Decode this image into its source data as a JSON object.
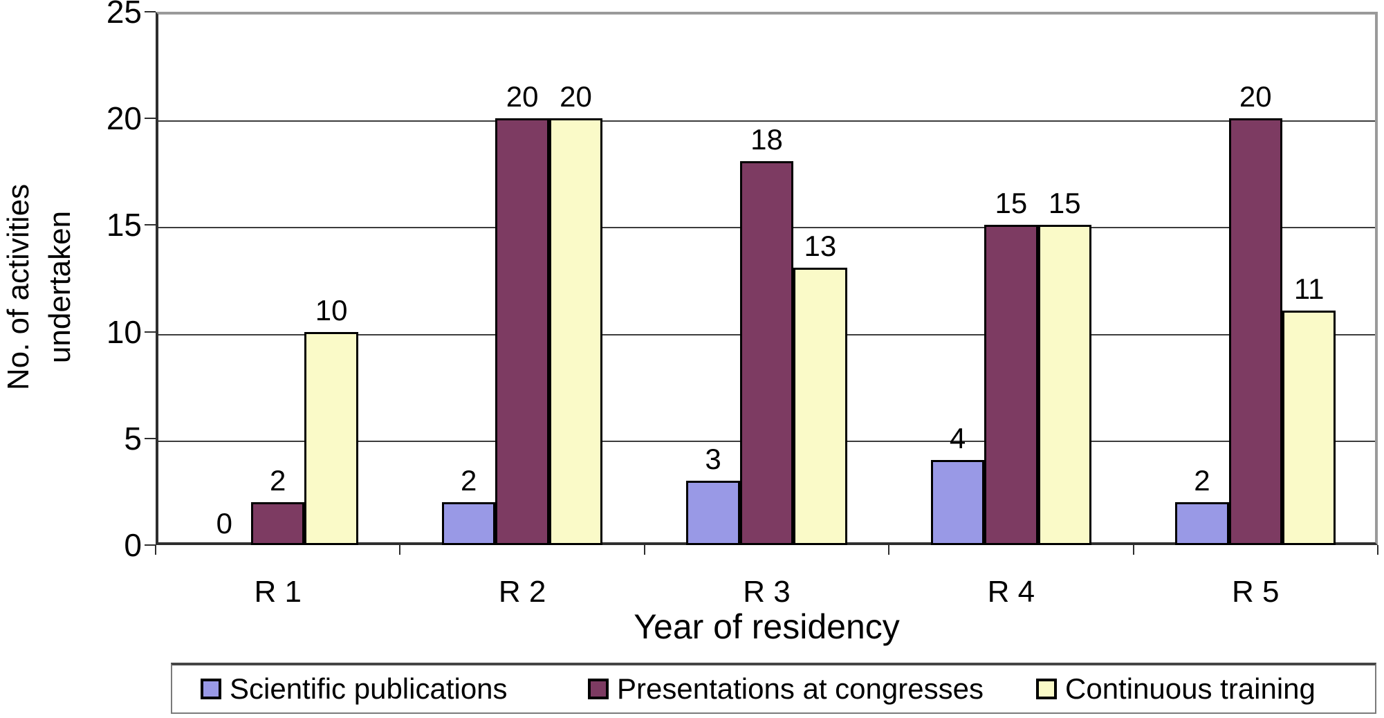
{
  "chart_data": {
    "type": "bar",
    "title": "",
    "categories": [
      "R 1",
      "R 2",
      "R 3",
      "R 4",
      "R 5"
    ],
    "series": [
      {
        "name": "Scientific publications",
        "color": "#9999E6",
        "values": [
          0,
          2,
          3,
          4,
          2
        ]
      },
      {
        "name": "Presentations at congresses",
        "color": "#7D3B62",
        "values": [
          2,
          20,
          18,
          15,
          20
        ]
      },
      {
        "name": "Continuous training",
        "color": "#FAFAC8",
        "values": [
          10,
          20,
          13,
          15,
          11
        ]
      }
    ],
    "xlabel": "Year of residency",
    "ylabel": "No. of activities undertaken",
    "ylabel_lines": [
      "No. of activities",
      "undertaken"
    ],
    "ylim": [
      0,
      25
    ],
    "yticks": [
      0,
      5,
      10,
      15,
      20,
      25
    ],
    "grid": true,
    "bar_value_labels_shown": true,
    "legend_position": "bottom"
  },
  "colors": {
    "background": "#ffffff",
    "axis": "#2e2e2e",
    "grid": "#3c3c3c",
    "plot_outer_border": "#9a9a9a",
    "bar_border": "#000000",
    "legend_border": "#7a7a7a",
    "text": "#000000"
  }
}
